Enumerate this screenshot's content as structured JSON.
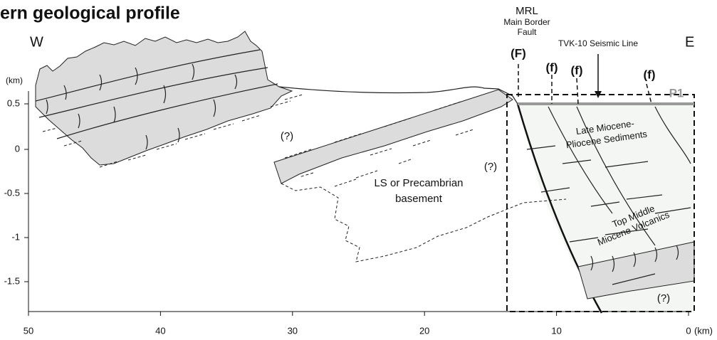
{
  "header": {
    "title": "ern geological profile"
  },
  "sides": {
    "west": "W",
    "east": "E"
  },
  "faults": {
    "mrl": "MRL",
    "mbf_line1": "Main Border",
    "mbf_line2": "Fault",
    "major": "(F)",
    "minor": [
      "(f)",
      "(f)",
      "(f)"
    ]
  },
  "seismic_line": "TVK-10 Seismic Line",
  "profile_label": "P1",
  "axes": {
    "y_unit": "(km)",
    "y_ticks": [
      "0.5",
      "0",
      "-0.5",
      "-1",
      "-1.5"
    ],
    "x_unit": "(km)",
    "x_ticks": [
      "50",
      "40",
      "30",
      "20",
      "10",
      "0"
    ]
  },
  "units": {
    "uncertain": [
      "(?)",
      "(?)",
      "(?)"
    ],
    "basement": [
      "LS or Precambrian",
      "basement"
    ],
    "sediments": [
      "Late Miocene-",
      "Pliocene Sediments"
    ],
    "volcanics": [
      "Top Middle",
      "Miocene Volcanics"
    ]
  }
}
